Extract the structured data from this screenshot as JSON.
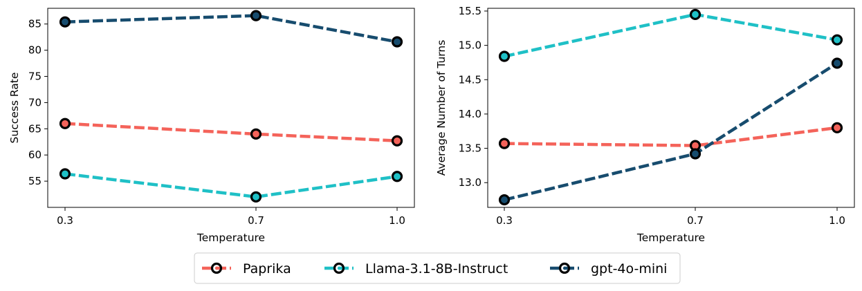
{
  "chart_data": [
    {
      "type": "line",
      "title": "",
      "xlabel": "Temperature",
      "ylabel": "Success Rate",
      "x": [
        "0.3",
        "0.7",
        "1.0"
      ],
      "ylim": [
        50.0,
        88.0
      ],
      "yticks": [
        "55",
        "60",
        "65",
        "70",
        "75",
        "80",
        "85"
      ],
      "grid": false,
      "series": [
        {
          "name": "Paprika",
          "values": [
            66.0,
            64.0,
            62.7
          ]
        },
        {
          "name": "Llama-3.1-8B-Instruct",
          "values": [
            56.4,
            52.0,
            55.9
          ]
        },
        {
          "name": "gpt-4o-mini",
          "values": [
            85.4,
            86.6,
            81.6
          ]
        }
      ]
    },
    {
      "type": "line",
      "title": "",
      "xlabel": "Temperature",
      "ylabel": "Average Number of Turns",
      "x": [
        "0.3",
        "0.7",
        "1.0"
      ],
      "ylim": [
        12.64,
        15.54
      ],
      "yticks": [
        "13.0",
        "13.5",
        "14.0",
        "14.5",
        "15.0",
        "15.5"
      ],
      "grid": false,
      "series": [
        {
          "name": "Paprika",
          "values": [
            13.57,
            13.54,
            13.8
          ]
        },
        {
          "name": "Llama-3.1-8B-Instruct",
          "values": [
            14.84,
            15.45,
            15.08
          ]
        },
        {
          "name": "gpt-4o-mini",
          "values": [
            12.75,
            13.42,
            14.74
          ]
        }
      ]
    }
  ],
  "legend": {
    "position": "bottom-center",
    "entries": [
      "Paprika",
      "Llama-3.1-8B-Instruct",
      "gpt-4o-mini"
    ]
  },
  "colors": {
    "Paprika": "#f4635a",
    "Llama-3.1-8B-Instruct": "#1fc0c6",
    "gpt-4o-mini": "#174c6e",
    "marker_edge": "#000000"
  }
}
